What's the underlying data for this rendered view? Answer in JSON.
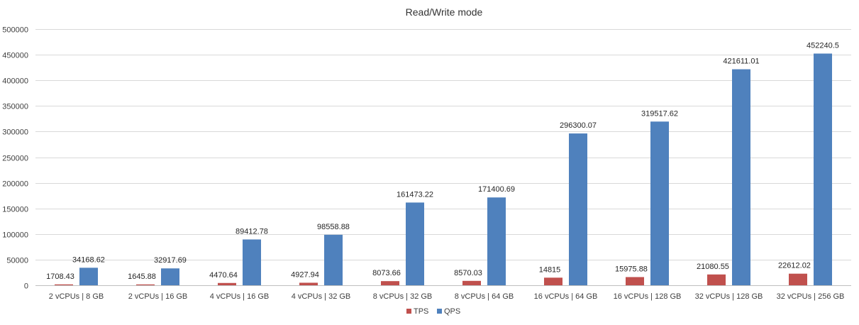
{
  "chart_data": {
    "type": "bar",
    "title": "Read/Write mode",
    "xlabel": "",
    "ylabel": "",
    "ylim": [
      0,
      500000
    ],
    "yticks": [
      0,
      50000,
      100000,
      150000,
      200000,
      250000,
      300000,
      350000,
      400000,
      450000,
      500000
    ],
    "grid": true,
    "legend_position": "bottom",
    "categories": [
      "2 vCPUs | 8 GB",
      "2 vCPUs | 16 GB",
      "4 vCPUs | 16 GB",
      "4 vCPUs | 32 GB",
      "8 vCPUs | 32 GB",
      "8 vCPUs | 64 GB",
      "16 vCPUs | 64 GB",
      "16 vCPUs | 128 GB",
      "32 vCPUs | 128 GB",
      "32 vCPUs | 256 GB"
    ],
    "series": [
      {
        "name": "TPS",
        "color": "#c0504d",
        "values": [
          1708.43,
          1645.88,
          4470.64,
          4927.94,
          8073.66,
          8570.03,
          14815,
          15975.88,
          21080.55,
          22612.02
        ],
        "labels": [
          "1708.43",
          "1645.88",
          "4470.64",
          "4927.94",
          "8073.66",
          "8570.03",
          "14815",
          "15975.88",
          "21080.55",
          "22612.02"
        ]
      },
      {
        "name": "QPS",
        "color": "#4f81bd",
        "values": [
          34168.62,
          32917.69,
          89412.78,
          98558.88,
          161473.22,
          171400.69,
          296300.07,
          319517.62,
          421611.01,
          452240.5
        ],
        "labels": [
          "34168.62",
          "32917.69",
          "89412.78",
          "98558.88",
          "161473.22",
          "171400.69",
          "296300.07",
          "319517.62",
          "421611.01",
          "452240.5"
        ]
      }
    ]
  }
}
